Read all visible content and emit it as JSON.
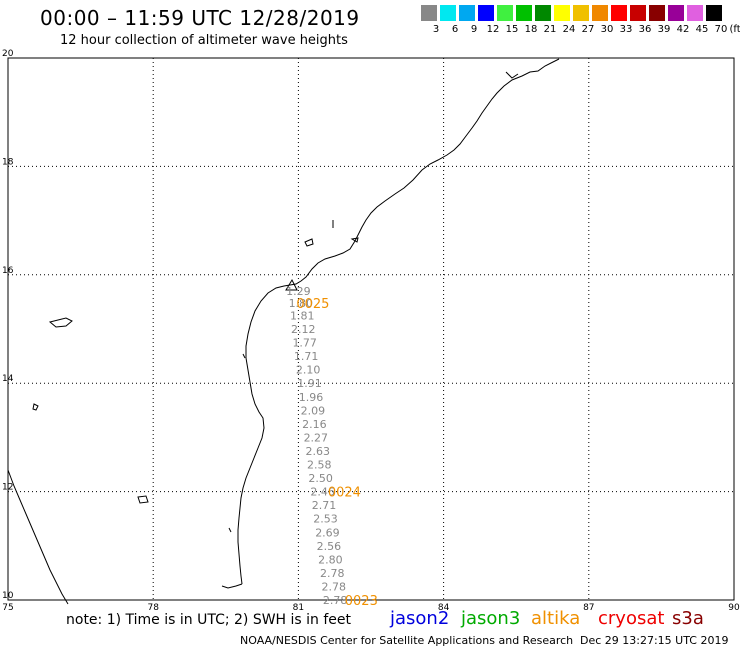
{
  "header": {
    "title": "00:00 – 11:59 UTC 12/28/2019",
    "subtitle": "12 hour collection of altimeter wave heights"
  },
  "legend": {
    "unit": "(ft)",
    "bins": [
      {
        "label": "3",
        "color": "#888888"
      },
      {
        "label": "6",
        "color": "#00e8f0"
      },
      {
        "label": "9",
        "color": "#00a8f0"
      },
      {
        "label": "12",
        "color": "#0000ff"
      },
      {
        "label": "15",
        "color": "#40f040"
      },
      {
        "label": "18",
        "color": "#00c000"
      },
      {
        "label": "21",
        "color": "#008800"
      },
      {
        "label": "24",
        "color": "#ffff00"
      },
      {
        "label": "27",
        "color": "#f0c000"
      },
      {
        "label": "30",
        "color": "#f08800"
      },
      {
        "label": "33",
        "color": "#ff0000"
      },
      {
        "label": "36",
        "color": "#c80000"
      },
      {
        "label": "39",
        "color": "#880000"
      },
      {
        "label": "42",
        "color": "#980098"
      },
      {
        "label": "45",
        "color": "#e060e0"
      },
      {
        "label": "70",
        "color": "#000000"
      }
    ]
  },
  "map": {
    "lon_range": [
      75,
      90
    ],
    "lat_range": [
      10,
      20
    ],
    "x_ticks": [
      "75",
      "78",
      "81",
      "84",
      "87",
      "90"
    ],
    "y_ticks": [
      "10",
      "12",
      "14",
      "16",
      "18",
      "20"
    ],
    "grid": "dotted"
  },
  "chart_data": {
    "type": "scatter",
    "series_name": "cryosat",
    "track": [
      {
        "lon": 81.0,
        "lat": 15.7,
        "swh": "1.29"
      },
      {
        "lon": 81.05,
        "lat": 15.48,
        "swh": "1.80"
      },
      {
        "lon": 81.08,
        "lat": 15.25,
        "swh": "1.81"
      },
      {
        "lon": 81.1,
        "lat": 15.0,
        "swh": "2.12"
      },
      {
        "lon": 81.13,
        "lat": 14.75,
        "swh": "1.77"
      },
      {
        "lon": 81.16,
        "lat": 14.5,
        "swh": "1.71"
      },
      {
        "lon": 81.2,
        "lat": 14.25,
        "swh": "2.10"
      },
      {
        "lon": 81.23,
        "lat": 14.0,
        "swh": "1.91"
      },
      {
        "lon": 81.26,
        "lat": 13.75,
        "swh": "1.96"
      },
      {
        "lon": 81.3,
        "lat": 13.5,
        "swh": "2.09"
      },
      {
        "lon": 81.33,
        "lat": 13.25,
        "swh": "2.16"
      },
      {
        "lon": 81.36,
        "lat": 13.0,
        "swh": "2.27"
      },
      {
        "lon": 81.4,
        "lat": 12.75,
        "swh": "2.63"
      },
      {
        "lon": 81.43,
        "lat": 12.5,
        "swh": "2.58"
      },
      {
        "lon": 81.46,
        "lat": 12.25,
        "swh": "2.50"
      },
      {
        "lon": 81.5,
        "lat": 12.0,
        "swh": "2.46"
      },
      {
        "lon": 81.53,
        "lat": 11.75,
        "swh": "2.71"
      },
      {
        "lon": 81.56,
        "lat": 11.5,
        "swh": "2.53"
      },
      {
        "lon": 81.6,
        "lat": 11.25,
        "swh": "2.69"
      },
      {
        "lon": 81.63,
        "lat": 11.0,
        "swh": "2.56"
      },
      {
        "lon": 81.66,
        "lat": 10.75,
        "swh": "2.80"
      },
      {
        "lon": 81.7,
        "lat": 10.5,
        "swh": "2.78"
      },
      {
        "lon": 81.73,
        "lat": 10.25,
        "swh": "2.78"
      },
      {
        "lon": 81.76,
        "lat": 10.0,
        "swh": "2.78"
      }
    ],
    "time_labels": [
      {
        "text": "0025",
        "lon": 81.3,
        "lat": 15.48,
        "color": "#f09000"
      },
      {
        "text": "0024",
        "lon": 81.95,
        "lat": 12.0,
        "color": "#f09000"
      },
      {
        "text": "0023",
        "lon": 82.3,
        "lat": 10.0,
        "color": "#f09000"
      }
    ]
  },
  "footer": {
    "note": "note: 1) Time is in UTC; 2) SWH is in feet",
    "satellites": [
      {
        "name": "jason2",
        "color": "#0000dd"
      },
      {
        "name": "jason3",
        "color": "#00aa00"
      },
      {
        "name": "altika",
        "color": "#f09000"
      },
      {
        "name": "cryosat",
        "color": "#ee0000"
      },
      {
        "name": "s3a",
        "color": "#880000"
      }
    ],
    "credit": "NOAA/NESDIS Center for Satellite Applications and Research",
    "timestamp": "Dec 29 13:27:15 UTC 2019"
  }
}
